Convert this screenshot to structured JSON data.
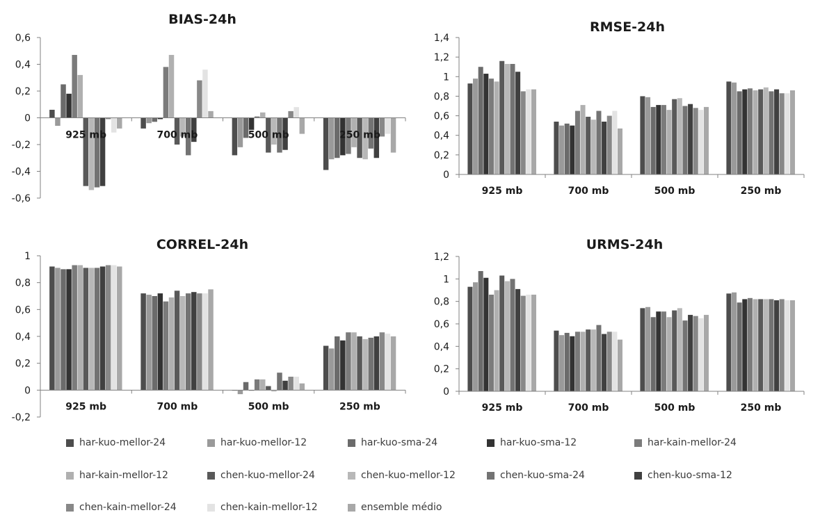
{
  "colors": {
    "series": [
      "#4d4d4d",
      "#9a9a9a",
      "#6b6b6b",
      "#333333",
      "#7b7b7b",
      "#b0b0b0",
      "#595959",
      "#b8b8b8",
      "#737373",
      "#404040",
      "#888888",
      "#e3e3e3",
      "#a8a8a8"
    ],
    "axis": "#808080",
    "text": "#1a1a1a"
  },
  "legend": {
    "items": [
      {
        "label": "har-kuo-mellor-24"
      },
      {
        "label": "har-kuo-mellor-12"
      },
      {
        "label": "har-kuo-sma-24"
      },
      {
        "label": "har-kuo-sma-12"
      },
      {
        "label": "har-kain-mellor-24"
      },
      {
        "label": "har-kain-mellor-12"
      },
      {
        "label": "chen-kuo-mellor-24"
      },
      {
        "label": "chen-kuo-mellor-12"
      },
      {
        "label": "chen-kuo-sma-24"
      },
      {
        "label": "chen-kuo-sma-12"
      },
      {
        "label": "chen-kain-mellor-24"
      },
      {
        "label": "chen-kain-mellor-12"
      },
      {
        "label": "ensemble médio"
      }
    ]
  },
  "chart_data": [
    {
      "type": "bar",
      "title": "BIAS-24h",
      "categories": [
        "925 mb",
        "700 mb",
        "500 mb",
        "250 mb"
      ],
      "ylim": [
        -0.6,
        0.6
      ],
      "yticks": [
        -0.6,
        -0.4,
        -0.2,
        0,
        0.2,
        0.4,
        0.6
      ],
      "ytick_labels": [
        "-0,6",
        "-0,4",
        "-0,2",
        "0",
        "0,2",
        "0,4",
        "0,6"
      ],
      "category_labels_position": "at zero line",
      "grid": false,
      "values_by_category": [
        [
          0.06,
          -0.06,
          0.25,
          0.18,
          0.47,
          0.32,
          -0.51,
          -0.54,
          -0.52,
          -0.51,
          -0.01,
          -0.11,
          -0.08
        ],
        [
          -0.08,
          -0.04,
          -0.03,
          -0.01,
          0.38,
          0.47,
          -0.2,
          -0.14,
          -0.28,
          -0.18,
          0.28,
          0.36,
          0.05
        ],
        [
          -0.28,
          -0.22,
          -0.15,
          -0.09,
          0.01,
          0.04,
          -0.26,
          -0.2,
          -0.26,
          -0.24,
          0.05,
          0.08,
          -0.12
        ],
        [
          -0.39,
          -0.31,
          -0.3,
          -0.28,
          -0.27,
          -0.22,
          -0.3,
          -0.31,
          -0.23,
          -0.3,
          -0.14,
          -0.12,
          -0.26
        ]
      ]
    },
    {
      "type": "bar",
      "title": "RMSE-24h",
      "categories": [
        "925 mb",
        "700 mb",
        "500 mb",
        "250 mb"
      ],
      "ylim": [
        0,
        1.4
      ],
      "yticks": [
        0,
        0.2,
        0.4,
        0.6,
        0.8,
        1,
        1.2,
        1.4
      ],
      "ytick_labels": [
        "0",
        "0,2",
        "0,4",
        "0,6",
        "0,8",
        "1",
        "1,2",
        "1,4"
      ],
      "category_labels_position": "below axis",
      "grid": false,
      "values_by_category": [
        [
          0.93,
          0.98,
          1.1,
          1.03,
          0.98,
          0.95,
          1.16,
          1.13,
          1.13,
          1.05,
          0.85,
          0.87,
          0.87
        ],
        [
          0.54,
          0.5,
          0.52,
          0.5,
          0.65,
          0.71,
          0.59,
          0.56,
          0.65,
          0.54,
          0.6,
          0.65,
          0.47
        ],
        [
          0.8,
          0.79,
          0.69,
          0.71,
          0.71,
          0.66,
          0.77,
          0.78,
          0.7,
          0.72,
          0.68,
          0.66,
          0.69
        ],
        [
          0.95,
          0.94,
          0.85,
          0.87,
          0.88,
          0.86,
          0.87,
          0.89,
          0.85,
          0.87,
          0.83,
          0.83,
          0.86
        ]
      ]
    },
    {
      "type": "bar",
      "title": "CORREL-24h",
      "categories": [
        "925 mb",
        "700 mb",
        "500 mb",
        "250 mb"
      ],
      "ylim": [
        -0.2,
        1
      ],
      "yticks": [
        -0.2,
        0,
        0.2,
        0.4,
        0.6,
        0.8,
        1
      ],
      "ytick_labels": [
        "-0,2",
        "0",
        "0,2",
        "0,4",
        "0,6",
        "0,8",
        "1"
      ],
      "category_labels_position": "below axis",
      "grid": false,
      "values_by_category": [
        [
          0.92,
          0.91,
          0.9,
          0.9,
          0.93,
          0.93,
          0.91,
          0.91,
          0.91,
          0.92,
          0.93,
          0.93,
          0.92
        ],
        [
          0.72,
          0.71,
          0.7,
          0.72,
          0.66,
          0.69,
          0.74,
          0.7,
          0.72,
          0.73,
          0.72,
          0.72,
          0.75
        ],
        [
          0.0,
          -0.03,
          0.06,
          0.0,
          0.08,
          0.08,
          0.03,
          -0.01,
          0.13,
          0.07,
          0.1,
          0.1,
          0.05
        ],
        [
          0.33,
          0.31,
          0.4,
          0.37,
          0.43,
          0.43,
          0.4,
          0.38,
          0.39,
          0.4,
          0.43,
          0.42,
          0.4
        ]
      ]
    },
    {
      "type": "bar",
      "title": "URMS-24h",
      "categories": [
        "925 mb",
        "700 mb",
        "500 mb",
        "250 mb"
      ],
      "ylim": [
        0,
        1.2
      ],
      "yticks": [
        0,
        0.2,
        0.4,
        0.6,
        0.8,
        1,
        1.2
      ],
      "ytick_labels": [
        "0",
        "0,2",
        "0,4",
        "0,6",
        "0,8",
        "1",
        "1,2"
      ],
      "category_labels_position": "below axis",
      "grid": false,
      "values_by_category": [
        [
          0.93,
          0.97,
          1.07,
          1.01,
          0.86,
          0.9,
          1.03,
          0.98,
          1.0,
          0.91,
          0.85,
          0.86,
          0.86
        ],
        [
          0.54,
          0.5,
          0.52,
          0.49,
          0.53,
          0.53,
          0.55,
          0.55,
          0.59,
          0.51,
          0.53,
          0.53,
          0.46
        ],
        [
          0.74,
          0.75,
          0.66,
          0.71,
          0.71,
          0.66,
          0.72,
          0.74,
          0.63,
          0.68,
          0.67,
          0.65,
          0.68
        ],
        [
          0.87,
          0.88,
          0.79,
          0.82,
          0.83,
          0.82,
          0.82,
          0.82,
          0.82,
          0.81,
          0.82,
          0.81,
          0.81
        ]
      ]
    }
  ]
}
